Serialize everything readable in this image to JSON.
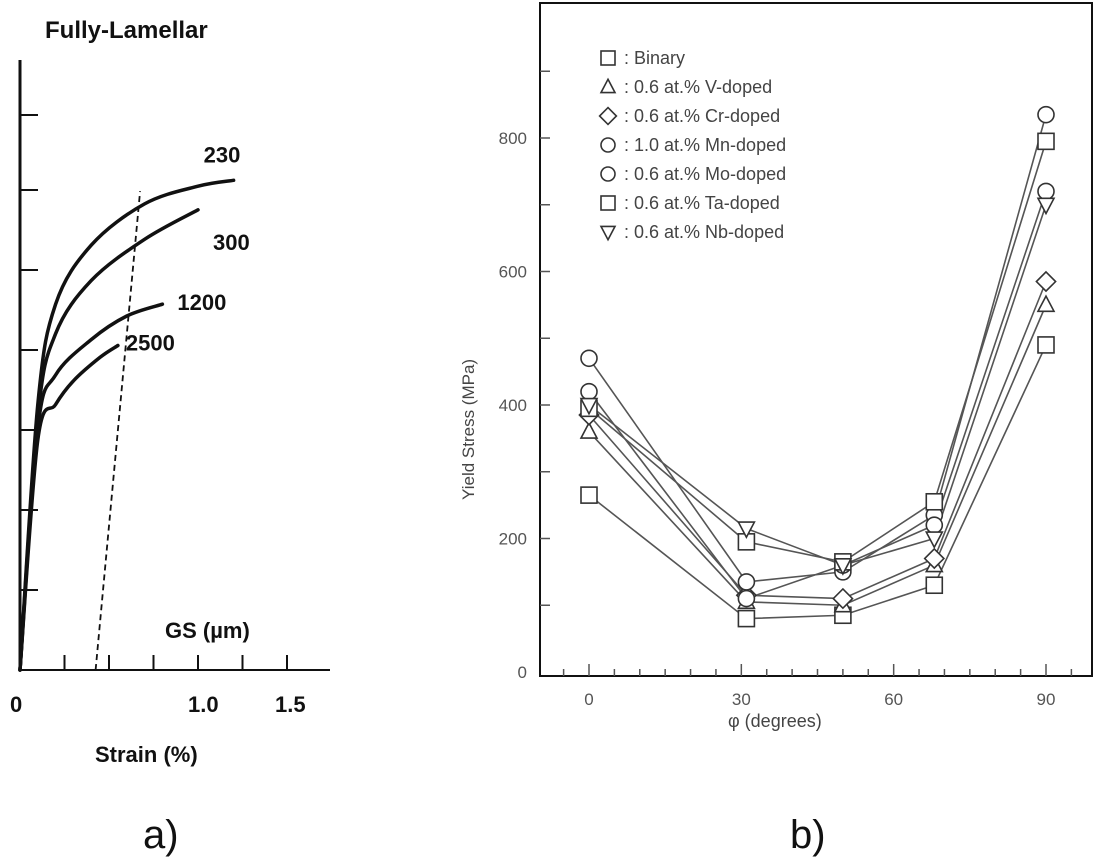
{
  "panels": {
    "a": {
      "caption": "a)"
    },
    "b": {
      "caption": "b)"
    }
  },
  "chart_data": [
    {
      "type": "line",
      "title": "Fully-Lamellar",
      "xlabel": "Strain (%)",
      "ylabel": "",
      "legend_title": "GS (µm)",
      "xlim": [
        0,
        1.5
      ],
      "x_tick_labels": [
        "0",
        "1.0",
        "1.5"
      ],
      "series": [
        {
          "name": "230",
          "x": [
            0,
            0.1,
            0.2,
            0.4,
            0.7,
            1.0,
            1.2
          ],
          "y": [
            0,
            0.45,
            0.62,
            0.72,
            0.79,
            0.82,
            0.83
          ]
        },
        {
          "name": "300",
          "x": [
            0,
            0.1,
            0.2,
            0.4,
            0.7,
            1.0
          ],
          "y": [
            0,
            0.43,
            0.57,
            0.66,
            0.73,
            0.78
          ]
        },
        {
          "name": "1200",
          "x": [
            0,
            0.1,
            0.2,
            0.4,
            0.6,
            0.8
          ],
          "y": [
            0,
            0.41,
            0.5,
            0.56,
            0.6,
            0.62
          ]
        },
        {
          "name": "2500",
          "x": [
            0,
            0.1,
            0.2,
            0.3,
            0.45,
            0.55
          ],
          "y": [
            0,
            0.39,
            0.45,
            0.49,
            0.53,
            0.55
          ]
        }
      ],
      "offset_line": {
        "x": [
          0.2,
          0.45
        ],
        "y": [
          0,
          0.82
        ],
        "style": "dashed"
      }
    },
    {
      "type": "line",
      "title": "",
      "xlabel": "φ  (degrees)",
      "ylabel": "Yield Stress (MPa)",
      "xlim": [
        -10,
        95
      ],
      "ylim": [
        0,
        1000
      ],
      "x_ticks": [
        0,
        30,
        60,
        90
      ],
      "y_ticks": [
        0,
        200,
        400,
        600,
        800
      ],
      "x": [
        0,
        31,
        50,
        68,
        90
      ],
      "series": [
        {
          "name": ": Binary",
          "marker": "square",
          "values": [
            265,
            80,
            85,
            130,
            490
          ]
        },
        {
          "name": ": 0.6 at.% V-doped",
          "marker": "triangle",
          "values": [
            360,
            105,
            100,
            160,
            550
          ]
        },
        {
          "name": ": 0.6 at.% Cr-doped",
          "marker": "diamond",
          "values": [
            385,
            115,
            110,
            170,
            585
          ]
        },
        {
          "name": ": 1.0 at.% Mn-doped",
          "marker": "circle",
          "values": [
            470,
            135,
            150,
            235,
            835
          ]
        },
        {
          "name": ": 0.6 at.% Mo-doped",
          "marker": "circle",
          "values": [
            420,
            110,
            160,
            220,
            720
          ]
        },
        {
          "name": ": 0.6 at.% Ta-doped",
          "marker": "square",
          "values": [
            395,
            195,
            165,
            255,
            795
          ]
        },
        {
          "name": ": 0.6 at.% Nb-doped",
          "marker": "triangle-down",
          "values": [
            400,
            215,
            160,
            200,
            700
          ]
        }
      ]
    }
  ],
  "colors": {
    "ink": "#111111",
    "panel_b_ink": "#555555",
    "background": "#ffffff"
  }
}
